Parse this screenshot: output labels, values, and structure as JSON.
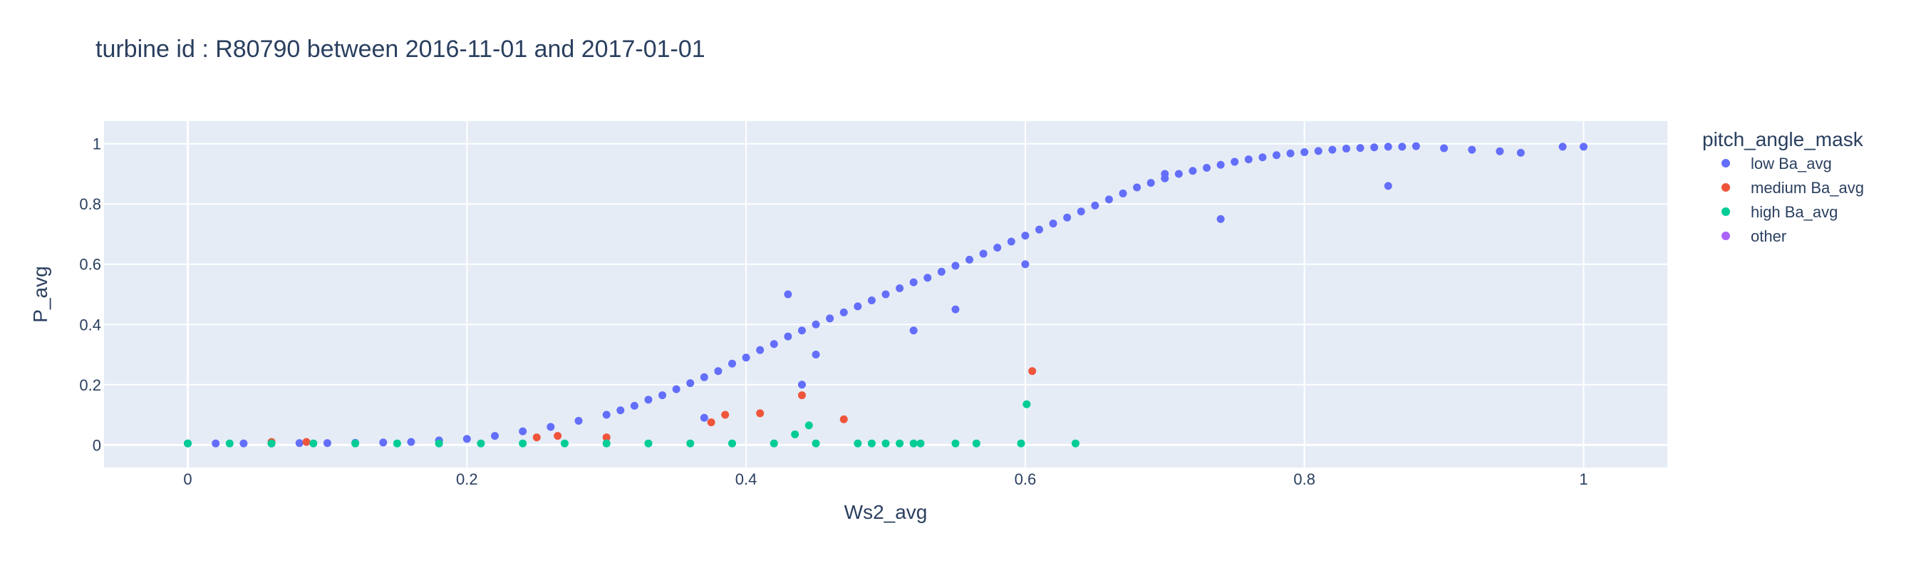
{
  "chart_data": {
    "type": "scatter",
    "title": "turbine id : R80790 between 2016-11-01 and 2017-01-01",
    "xlabel": "Ws2_avg",
    "ylabel": "P_avg",
    "xlim": [
      -0.06,
      1.06
    ],
    "ylim": [
      -0.075,
      1.075
    ],
    "x_ticks": [
      0,
      0.2,
      0.4,
      0.6,
      0.8,
      1
    ],
    "y_ticks": [
      0,
      0.2,
      0.4,
      0.6,
      0.8,
      1
    ],
    "x_tick_labels": [
      "0",
      "0.2",
      "0.4",
      "0.6",
      "0.8",
      "1"
    ],
    "y_tick_labels": [
      "0",
      "0.2",
      "0.4",
      "0.6",
      "0.8",
      "1"
    ],
    "grid": true,
    "legend_title": "pitch_angle_mask",
    "legend_position": "right",
    "series": [
      {
        "name": "low Ba_avg",
        "color": "#636efa",
        "x": [
          0.0,
          0.02,
          0.04,
          0.06,
          0.08,
          0.1,
          0.12,
          0.14,
          0.16,
          0.18,
          0.2,
          0.22,
          0.24,
          0.26,
          0.28,
          0.3,
          0.31,
          0.32,
          0.33,
          0.34,
          0.35,
          0.36,
          0.37,
          0.38,
          0.39,
          0.4,
          0.41,
          0.42,
          0.43,
          0.44,
          0.45,
          0.46,
          0.47,
          0.48,
          0.49,
          0.5,
          0.51,
          0.52,
          0.53,
          0.54,
          0.55,
          0.56,
          0.57,
          0.58,
          0.59,
          0.6,
          0.61,
          0.62,
          0.63,
          0.64,
          0.65,
          0.66,
          0.67,
          0.68,
          0.69,
          0.7,
          0.71,
          0.72,
          0.73,
          0.74,
          0.75,
          0.76,
          0.77,
          0.78,
          0.79,
          0.8,
          0.81,
          0.82,
          0.83,
          0.84,
          0.85,
          0.86,
          0.87,
          0.88,
          0.9,
          0.92,
          0.94,
          0.955,
          0.985,
          1.0,
          0.43,
          0.44,
          0.45,
          0.37,
          0.52,
          0.6,
          0.7,
          0.55,
          0.74,
          0.86
        ],
        "y": [
          0.005,
          0.005,
          0.005,
          0.005,
          0.006,
          0.006,
          0.007,
          0.008,
          0.01,
          0.015,
          0.02,
          0.03,
          0.045,
          0.06,
          0.08,
          0.1,
          0.115,
          0.13,
          0.15,
          0.165,
          0.185,
          0.205,
          0.225,
          0.245,
          0.27,
          0.29,
          0.315,
          0.335,
          0.36,
          0.38,
          0.4,
          0.42,
          0.44,
          0.46,
          0.48,
          0.5,
          0.52,
          0.54,
          0.555,
          0.575,
          0.595,
          0.615,
          0.635,
          0.655,
          0.675,
          0.695,
          0.715,
          0.735,
          0.755,
          0.775,
          0.795,
          0.815,
          0.835,
          0.855,
          0.87,
          0.885,
          0.9,
          0.91,
          0.92,
          0.93,
          0.94,
          0.948,
          0.955,
          0.962,
          0.968,
          0.972,
          0.976,
          0.98,
          0.984,
          0.986,
          0.988,
          0.99,
          0.99,
          0.992,
          0.985,
          0.98,
          0.975,
          0.97,
          0.99,
          0.99,
          0.5,
          0.2,
          0.3,
          0.09,
          0.38,
          0.6,
          0.9,
          0.45,
          0.75,
          0.86
        ]
      },
      {
        "name": "medium Ba_avg",
        "color": "#ef553b",
        "x": [
          0.06,
          0.085,
          0.25,
          0.265,
          0.3,
          0.375,
          0.385,
          0.41,
          0.44,
          0.47,
          0.605
        ],
        "y": [
          0.01,
          0.01,
          0.025,
          0.03,
          0.025,
          0.075,
          0.1,
          0.105,
          0.165,
          0.085,
          0.245
        ]
      },
      {
        "name": "high Ba_avg",
        "color": "#00cc96",
        "x": [
          0.0,
          0.03,
          0.06,
          0.09,
          0.12,
          0.15,
          0.18,
          0.21,
          0.24,
          0.27,
          0.3,
          0.33,
          0.36,
          0.39,
          0.42,
          0.45,
          0.48,
          0.49,
          0.5,
          0.51,
          0.52,
          0.525,
          0.55,
          0.565,
          0.597,
          0.601,
          0.636,
          0.435,
          0.445
        ],
        "y": [
          0.005,
          0.005,
          0.005,
          0.005,
          0.005,
          0.005,
          0.005,
          0.005,
          0.005,
          0.005,
          0.005,
          0.005,
          0.005,
          0.005,
          0.005,
          0.005,
          0.005,
          0.005,
          0.005,
          0.005,
          0.005,
          0.005,
          0.005,
          0.005,
          0.005,
          0.135,
          0.005,
          0.035,
          0.065
        ]
      },
      {
        "name": "other",
        "color": "#ab63fa",
        "x": [],
        "y": []
      }
    ]
  }
}
